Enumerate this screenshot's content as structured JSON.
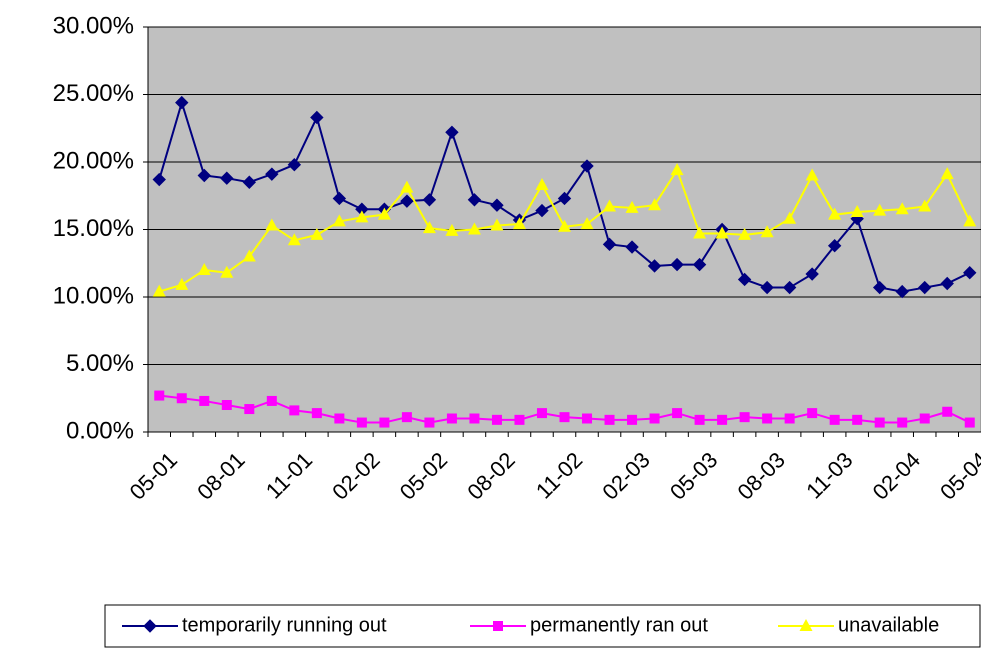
{
  "chart_data": {
    "type": "line",
    "categories": [
      "05-01",
      null,
      null,
      "08-01",
      null,
      null,
      "11-01",
      null,
      null,
      "02-02",
      null,
      null,
      "05-02",
      null,
      null,
      "08-02",
      null,
      null,
      "11-02",
      null,
      null,
      "02-03",
      null,
      null,
      "05-03",
      null,
      null,
      "08-03",
      null,
      null,
      "11-03",
      null,
      null,
      "02-04",
      null,
      null,
      "05-04"
    ],
    "series": [
      {
        "name": "temporarily running out",
        "color": "#000080",
        "marker": "diamond",
        "values": [
          18.7,
          24.4,
          19.0,
          18.8,
          18.5,
          19.1,
          19.8,
          23.3,
          17.3,
          16.5,
          16.5,
          17.1,
          17.2,
          22.2,
          17.2,
          16.8,
          15.7,
          16.4,
          17.3,
          19.7,
          13.9,
          13.7,
          12.3,
          12.4,
          12.4,
          15.0,
          11.3,
          10.7,
          10.7,
          11.7,
          13.8,
          15.8,
          10.7,
          10.4,
          10.7,
          11.0,
          11.8
        ]
      },
      {
        "name": "permanently ran out",
        "color": "#ff00ff",
        "marker": "square",
        "values": [
          2.7,
          2.5,
          2.3,
          2.0,
          1.7,
          2.3,
          1.6,
          1.4,
          1.0,
          0.7,
          0.7,
          1.1,
          0.7,
          1.0,
          1.0,
          0.9,
          0.9,
          1.4,
          1.1,
          1.0,
          0.9,
          0.9,
          1.0,
          1.4,
          0.9,
          0.9,
          1.1,
          1.0,
          1.0,
          1.4,
          0.9,
          0.9,
          0.7,
          0.7,
          1.0,
          1.5,
          0.7
        ]
      },
      {
        "name": "unavailable",
        "color": "#ffff00",
        "marker": "triangle",
        "values": [
          10.4,
          10.9,
          12.0,
          11.8,
          13.0,
          15.3,
          14.2,
          14.6,
          15.6,
          15.9,
          16.1,
          18.1,
          15.1,
          14.9,
          15.0,
          15.3,
          15.4,
          18.3,
          15.2,
          15.4,
          16.7,
          16.6,
          16.8,
          19.4,
          14.7,
          14.7,
          14.6,
          14.8,
          15.8,
          19.0,
          16.1,
          16.3,
          16.4,
          16.5,
          16.7,
          19.1,
          15.6
        ]
      }
    ],
    "ylim": [
      0,
      30
    ],
    "yticks": [
      {
        "value": 0,
        "label": "0.00%"
      },
      {
        "value": 5,
        "label": "5.00%"
      },
      {
        "value": 10,
        "label": "10.00%"
      },
      {
        "value": 15,
        "label": "15.00%"
      },
      {
        "value": 20,
        "label": "20.00%"
      },
      {
        "value": 25,
        "label": "25.00%"
      },
      {
        "value": 30,
        "label": "30.00%"
      }
    ],
    "grid": true,
    "plot_background": "#c0c0c0",
    "legend": "bottom"
  }
}
